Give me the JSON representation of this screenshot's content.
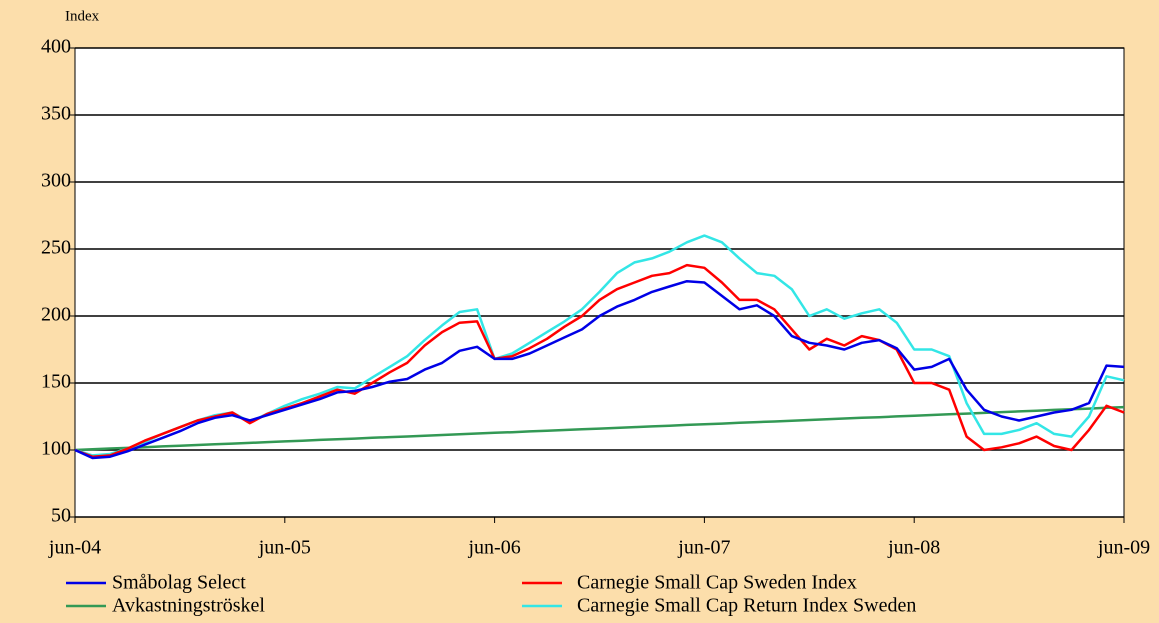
{
  "chart_data": {
    "type": "line",
    "y_label": "Index",
    "x": [
      "2004-06",
      "2004-07",
      "2004-08",
      "2004-09",
      "2004-10",
      "2004-11",
      "2004-12",
      "2005-01",
      "2005-02",
      "2005-03",
      "2005-04",
      "2005-05",
      "2005-06",
      "2005-07",
      "2005-08",
      "2005-09",
      "2005-10",
      "2005-11",
      "2005-12",
      "2006-01",
      "2006-02",
      "2006-03",
      "2006-04",
      "2006-05",
      "2006-06",
      "2006-07",
      "2006-08",
      "2006-09",
      "2006-10",
      "2006-11",
      "2006-12",
      "2007-01",
      "2007-02",
      "2007-03",
      "2007-04",
      "2007-05",
      "2007-06",
      "2007-07",
      "2007-08",
      "2007-09",
      "2007-10",
      "2007-11",
      "2007-12",
      "2008-01",
      "2008-02",
      "2008-03",
      "2008-04",
      "2008-05",
      "2008-06",
      "2008-07",
      "2008-08",
      "2008-09",
      "2008-10",
      "2008-11",
      "2008-12",
      "2009-01",
      "2009-02",
      "2009-03",
      "2009-04",
      "2009-05",
      "2009-06"
    ],
    "xlim": [
      "2004-06",
      "2009-06"
    ],
    "xticks": [
      {
        "value": "2004-06",
        "label": "jun-04"
      },
      {
        "value": "2005-06",
        "label": "jun-05"
      },
      {
        "value": "2006-06",
        "label": "jun-06"
      },
      {
        "value": "2007-06",
        "label": "jun-07"
      },
      {
        "value": "2008-06",
        "label": "jun-08"
      },
      {
        "value": "2009-06",
        "label": "jun-09"
      }
    ],
    "ylim": [
      50,
      400
    ],
    "yticks": [
      50,
      100,
      150,
      200,
      250,
      300,
      350,
      400
    ],
    "grid": true,
    "legend": "bottom",
    "series": [
      {
        "name": "Småbolag Select",
        "color": "#0000e6",
        "values": [
          100,
          94,
          95,
          99,
          104,
          109,
          114,
          120,
          124,
          126,
          122,
          126,
          130,
          134,
          138,
          143,
          144,
          147,
          151,
          153,
          160,
          165,
          174,
          177,
          168,
          168,
          172,
          178,
          184,
          190,
          200,
          207,
          212,
          218,
          222,
          226,
          225,
          215,
          205,
          208,
          200,
          185,
          180,
          178,
          175,
          180,
          182,
          176,
          160,
          162,
          168,
          145,
          130,
          125,
          122,
          125,
          128,
          130,
          135,
          163,
          162
        ]
      },
      {
        "name": "Carnegie Small Cap Sweden Index",
        "color": "#ff0000",
        "values": [
          100,
          95,
          96,
          101,
          107,
          112,
          117,
          122,
          125,
          128,
          120,
          127,
          131,
          135,
          140,
          145,
          142,
          150,
          158,
          165,
          178,
          188,
          195,
          196,
          168,
          170,
          176,
          183,
          192,
          200,
          212,
          220,
          225,
          230,
          232,
          238,
          236,
          225,
          212,
          212,
          205,
          190,
          175,
          183,
          178,
          185,
          182,
          175,
          150,
          150,
          145,
          110,
          100,
          102,
          105,
          110,
          103,
          100,
          115,
          133,
          128
        ]
      },
      {
        "name": "Avkastningströskel",
        "color": "#339955",
        "values": [
          100,
          100.5,
          101.1,
          101.6,
          102.1,
          102.7,
          103.2,
          103.7,
          104.3,
          104.8,
          105.3,
          105.9,
          106.4,
          106.9,
          107.5,
          108,
          108.5,
          109.1,
          109.6,
          110.1,
          110.7,
          111.2,
          111.7,
          112.3,
          112.8,
          113.3,
          113.9,
          114.4,
          114.9,
          115.5,
          116,
          116.5,
          117.1,
          117.6,
          118.1,
          118.7,
          119.2,
          119.7,
          120.3,
          120.8,
          121.3,
          121.9,
          122.4,
          122.9,
          123.5,
          124,
          124.5,
          125.1,
          125.6,
          126.1,
          126.7,
          127.2,
          127.7,
          128.3,
          128.8,
          129.3,
          129.9,
          130.4,
          130.9,
          131.5,
          132
        ]
      },
      {
        "name": "Carnegie Small Cap Return Index Sweden",
        "color": "#33e6e6",
        "values": [
          100,
          96,
          97,
          101,
          106,
          112,
          117,
          122,
          126,
          128,
          121,
          127,
          133,
          138,
          142,
          147,
          146,
          154,
          162,
          170,
          182,
          193,
          203,
          205,
          168,
          172,
          180,
          188,
          196,
          205,
          218,
          232,
          240,
          243,
          248,
          255,
          260,
          255,
          243,
          232,
          230,
          220,
          200,
          205,
          198,
          202,
          205,
          195,
          175,
          175,
          170,
          135,
          112,
          112,
          115,
          120,
          112,
          110,
          125,
          155,
          152
        ]
      }
    ]
  }
}
